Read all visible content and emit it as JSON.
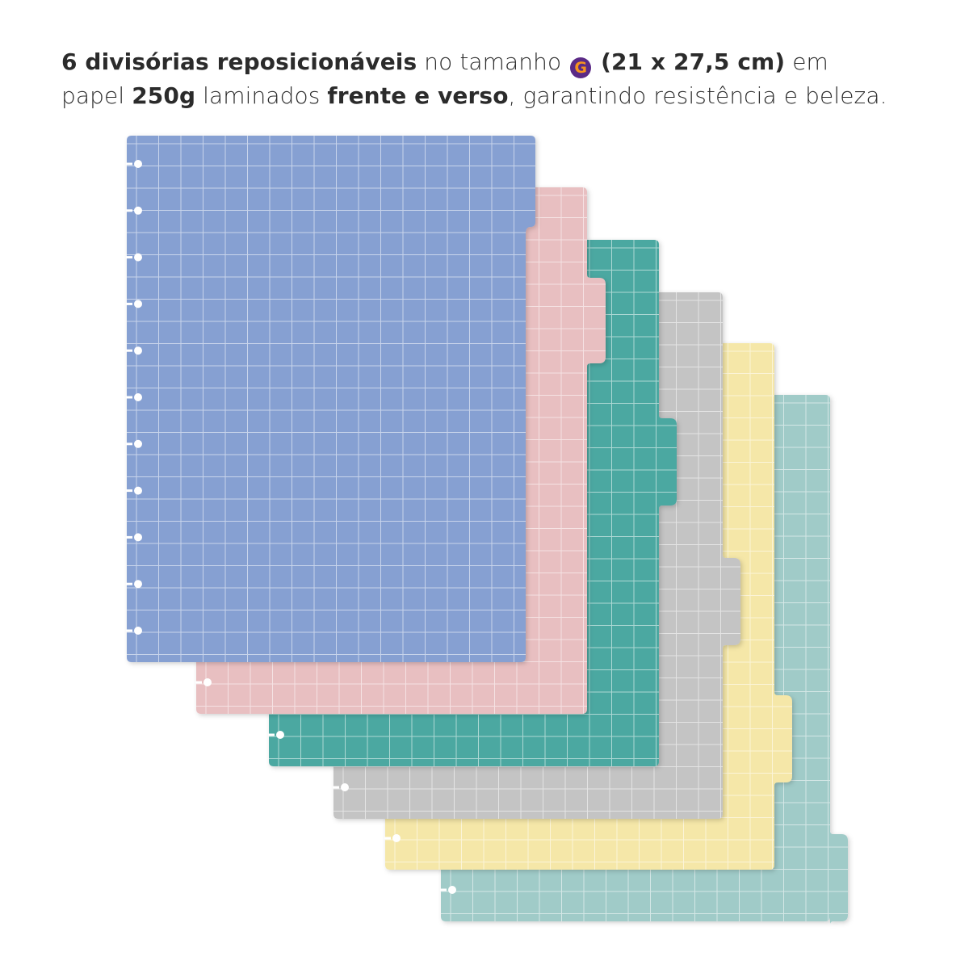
{
  "headline": {
    "line1": {
      "p1": "6 divisórias reposicionáveis",
      "p2": " no tamanho ",
      "badge": "G",
      "p3": " (21 x 27,5 cm)",
      "p4": " em"
    },
    "line2": {
      "p1": "papel ",
      "p2": "250g",
      "p3": " laminados ",
      "p4": "frente e verso",
      "p5": ", garantindo resistência e beleza."
    },
    "badge_color": "#5b2a86",
    "badge_text_color": "#f7931e"
  },
  "dividers": [
    {
      "name": "divider-blue",
      "color": "#86a0d2"
    },
    {
      "name": "divider-pink",
      "color": "#e8bfc1"
    },
    {
      "name": "divider-teal",
      "color": "#4ba8a1"
    },
    {
      "name": "divider-gray",
      "color": "#c4c4c4"
    },
    {
      "name": "divider-yellow",
      "color": "#f5e7a8"
    },
    {
      "name": "divider-mint",
      "color": "#a0cbc8"
    }
  ]
}
